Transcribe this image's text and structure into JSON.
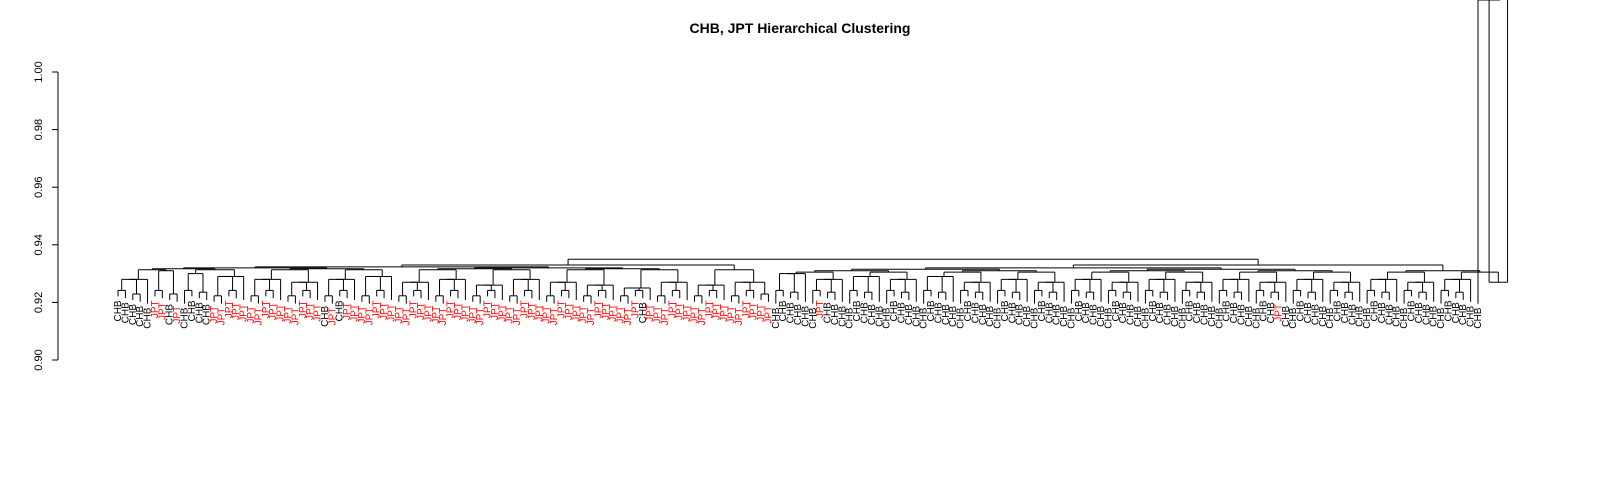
{
  "chart_data": {
    "type": "dendrogram",
    "title": "CHB, JPT Hierarchical Clustering",
    "xlabel": "",
    "ylabel": "",
    "ylim": [
      0.9,
      1.0
    ],
    "yticks": [
      "0.90",
      "0.92",
      "0.94",
      "0.96",
      "0.98",
      "1.00"
    ],
    "grid": false,
    "colors": {
      "CHB": "#000000",
      "JPT": "#ff0000",
      "branch": "#000000"
    },
    "leaves": [
      "CHB",
      "CHB",
      "CHB",
      "CHB",
      "CHB",
      "JPT",
      "JPT",
      "CHB",
      "JPT",
      "CHB",
      "CHB",
      "CHB",
      "CHB",
      "JPT",
      "JPT",
      "JPT",
      "JPT",
      "JPT",
      "JPT",
      "JPT",
      "JPT",
      "JPT",
      "JPT",
      "JPT",
      "JPT",
      "JPT",
      "JPT",
      "JPT",
      "CHB",
      "JPT",
      "CHB",
      "JPT",
      "JPT",
      "JPT",
      "JPT",
      "JPT",
      "JPT",
      "JPT",
      "JPT",
      "JPT",
      "JPT",
      "JPT",
      "JPT",
      "JPT",
      "JPT",
      "JPT",
      "JPT",
      "JPT",
      "JPT",
      "JPT",
      "JPT",
      "JPT",
      "JPT",
      "JPT",
      "JPT",
      "JPT",
      "JPT",
      "JPT",
      "JPT",
      "JPT",
      "JPT",
      "JPT",
      "JPT",
      "JPT",
      "JPT",
      "JPT",
      "JPT",
      "JPT",
      "JPT",
      "JPT",
      "JPT",
      "CHB",
      "JPT",
      "JPT",
      "JPT",
      "JPT",
      "JPT",
      "JPT",
      "JPT",
      "JPT",
      "JPT",
      "JPT",
      "JPT",
      "JPT",
      "JPT",
      "JPT",
      "JPT",
      "JPT",
      "JPT",
      "CHB",
      "CHB",
      "CHB",
      "CHB",
      "CHB",
      "CHB",
      "JPT",
      "CHB",
      "CHB",
      "CHB",
      "CHB",
      "CHB",
      "CHB",
      "CHB",
      "CHB",
      "CHB",
      "CHB",
      "CHB",
      "CHB",
      "CHB",
      "CHB",
      "CHB",
      "CHB",
      "CHB",
      "CHB",
      "CHB",
      "CHB",
      "CHB",
      "CHB",
      "CHB",
      "CHB",
      "CHB",
      "CHB",
      "CHB",
      "CHB",
      "CHB",
      "CHB",
      "CHB",
      "CHB",
      "CHB",
      "CHB",
      "CHB",
      "CHB",
      "CHB",
      "CHB",
      "CHB",
      "CHB",
      "CHB",
      "CHB",
      "CHB",
      "CHB",
      "CHB",
      "CHB",
      "CHB",
      "CHB",
      "CHB",
      "CHB",
      "CHB",
      "CHB",
      "CHB",
      "CHB",
      "CHB",
      "CHB",
      "CHB",
      "CHB",
      "CHB",
      "CHB",
      "CHB",
      "JPT",
      "CHB",
      "CHB",
      "CHB",
      "CHB",
      "CHB",
      "CHB",
      "CHB",
      "CHB",
      "CHB",
      "CHB",
      "CHB",
      "CHB",
      "CHB",
      "CHB",
      "CHB",
      "CHB",
      "CHB",
      "CHB",
      "CHB",
      "CHB",
      "CHB",
      "CHB",
      "CHB",
      "CHB",
      "CHB",
      "CHB",
      "CHB"
    ],
    "merges": [
      {
        "left": [
          0,
          4
        ],
        "height": 0.928
      },
      {
        "left": [
          5,
          8
        ],
        "height": 0.931
      },
      {
        "left": [
          9,
          12
        ],
        "height": 0.93
      },
      {
        "left": [
          13,
          17
        ],
        "height": 0.929
      },
      {
        "left": [
          18,
          22
        ],
        "height": 0.928
      },
      {
        "left": [
          23,
          27
        ],
        "height": 0.927
      },
      {
        "left": [
          28,
          32
        ],
        "height": 0.928
      },
      {
        "left": [
          33,
          37
        ],
        "height": 0.929
      },
      {
        "left": [
          38,
          42
        ],
        "height": 0.927
      },
      {
        "left": [
          43,
          47
        ],
        "height": 0.928
      },
      {
        "left": [
          48,
          52
        ],
        "height": 0.926
      },
      {
        "left": [
          53,
          57
        ],
        "height": 0.928
      },
      {
        "left": [
          58,
          62
        ],
        "height": 0.927
      },
      {
        "left": [
          63,
          67
        ],
        "height": 0.926
      },
      {
        "left": [
          68,
          72
        ],
        "height": 0.925
      },
      {
        "left": [
          73,
          77
        ],
        "height": 0.927
      },
      {
        "left": [
          78,
          82
        ],
        "height": 0.926
      },
      {
        "left": [
          83,
          88
        ],
        "height": 0.927
      },
      {
        "left": [
          89,
          93
        ],
        "height": 0.93
      },
      {
        "left": [
          94,
          98
        ],
        "height": 0.928
      },
      {
        "left": [
          99,
          103
        ],
        "height": 0.929
      },
      {
        "left": [
          104,
          108
        ],
        "height": 0.928
      },
      {
        "left": [
          109,
          113
        ],
        "height": 0.929
      },
      {
        "left": [
          114,
          118
        ],
        "height": 0.927
      },
      {
        "left": [
          119,
          123
        ],
        "height": 0.928
      },
      {
        "left": [
          124,
          128
        ],
        "height": 0.927
      },
      {
        "left": [
          129,
          133
        ],
        "height": 0.928
      },
      {
        "left": [
          134,
          138
        ],
        "height": 0.927
      },
      {
        "left": [
          139,
          143
        ],
        "height": 0.928
      },
      {
        "left": [
          144,
          148
        ],
        "height": 0.927
      },
      {
        "left": [
          149,
          153
        ],
        "height": 0.928
      },
      {
        "left": [
          154,
          158
        ],
        "height": 0.927
      },
      {
        "left": [
          159,
          163
        ],
        "height": 0.928
      },
      {
        "left": [
          164,
          168
        ],
        "height": 0.927
      },
      {
        "left": [
          169,
          173
        ],
        "height": 0.928
      },
      {
        "left": [
          174,
          178
        ],
        "height": 0.927
      },
      {
        "left": [
          179,
          183
        ],
        "height": 0.928
      },
      {
        "left": [
          184,
          188
        ],
        "height": 0.927
      }
    ],
    "top_heights": {
      "root": 0.935,
      "left_cluster": 0.933,
      "right_cluster": 0.933
    }
  }
}
